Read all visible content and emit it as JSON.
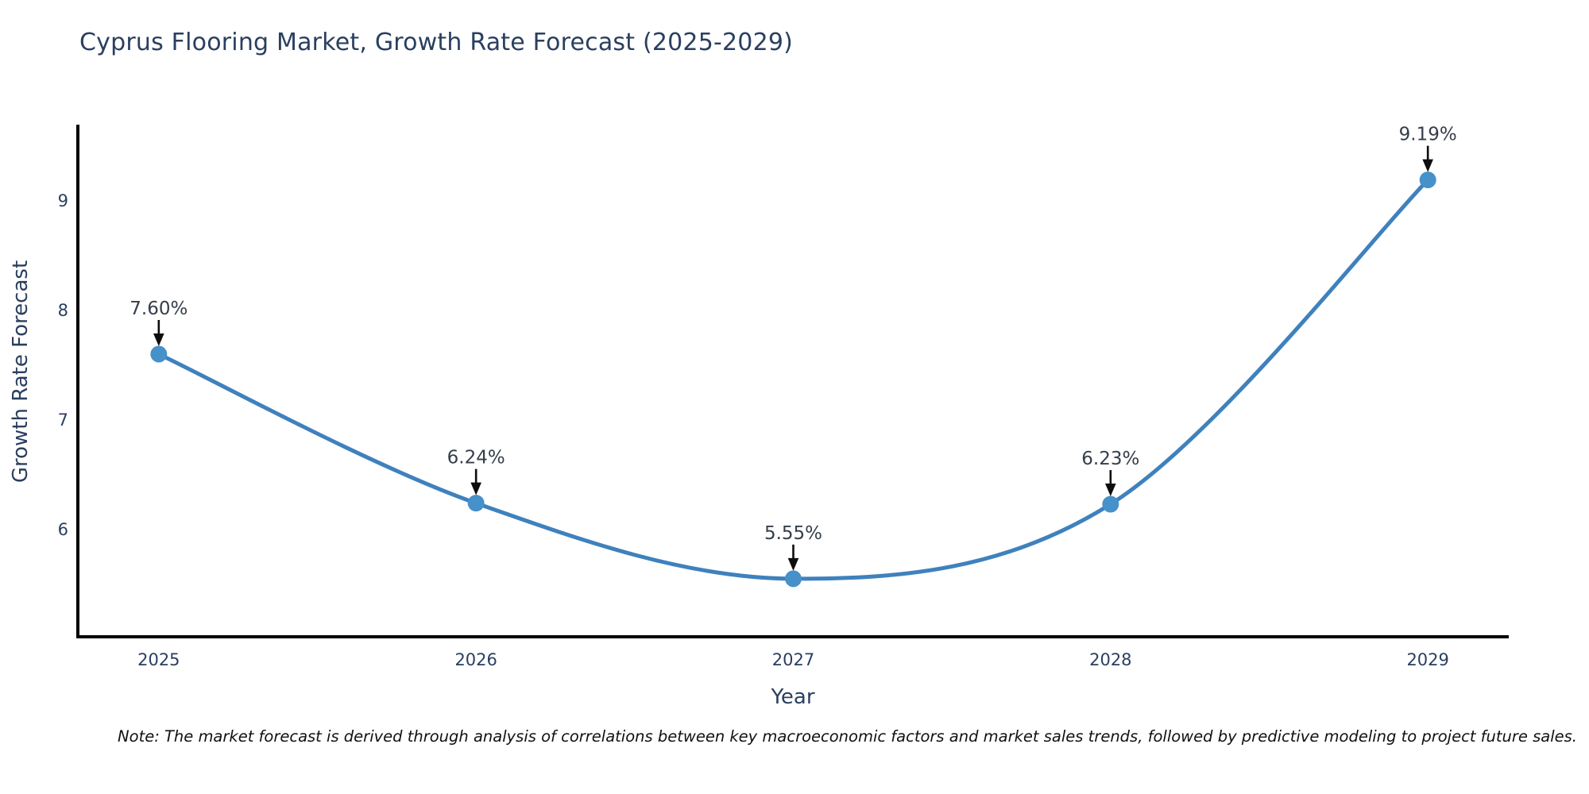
{
  "title": "Cyprus Flooring Market, Growth Rate Forecast (2025-2029)",
  "note": "Note: The market forecast is derived through analysis of correlations between key macroeconomic factors and market sales trends, followed by predictive modeling to project future sales.",
  "chart_data": {
    "type": "line",
    "line_shape": "spline",
    "title": "Cyprus Flooring Market, Growth Rate Forecast (2025-2029)",
    "xlabel": "Year",
    "ylabel": "Growth Rate Forecast",
    "x": [
      2025,
      2026,
      2027,
      2028,
      2029
    ],
    "y": [
      7.6,
      6.24,
      5.55,
      6.23,
      9.19
    ],
    "point_labels": [
      "7.60%",
      "6.24%",
      "5.55%",
      "6.23%",
      "9.19%"
    ],
    "xticks": [
      "2025",
      "2026",
      "2027",
      "2028",
      "2029"
    ],
    "xtick_values": [
      2025,
      2026,
      2027,
      2028,
      2029
    ],
    "yticks": [
      "6",
      "7",
      "8",
      "9"
    ],
    "ytick_values": [
      6,
      7,
      8,
      9
    ],
    "xlim": [
      2024.745,
      2029.255
    ],
    "ylim": [
      5.02,
      9.68
    ],
    "grid": false,
    "legend": false,
    "colors": {
      "line": "#3f81bd",
      "marker": "#4691c9",
      "axis_line": "#000000",
      "axis_text": "#2a3f5f",
      "annotation_text": "#353e4a",
      "arrow": "#0d0d0d",
      "background": "#ffffff"
    }
  }
}
